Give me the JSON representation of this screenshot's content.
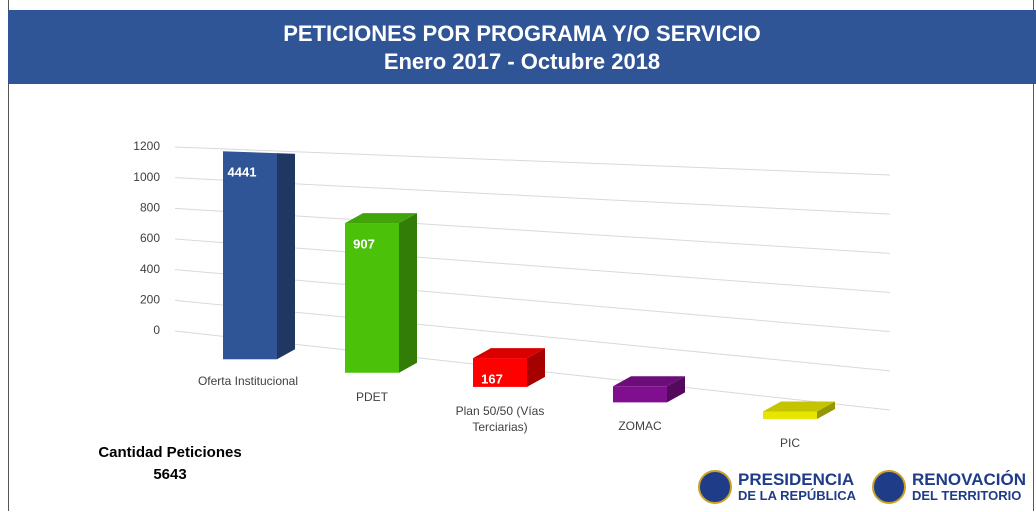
{
  "chart_data": {
    "type": "bar3d",
    "title": "PETICIONES POR PROGRAMA Y/O SERVICIO",
    "subtitle": "Enero 2017 - Octubre 2018",
    "categories": [
      "Oferta Institucional",
      "PDET",
      "Plan 50/50 (Vías Terciarias)",
      "ZOMAC",
      "PIC"
    ],
    "values": [
      4441,
      907,
      167,
      89,
      39
    ],
    "colors": [
      "#2f5597",
      "#4cc10a",
      "#ff0000",
      "#7f0f8f",
      "#e6e600"
    ],
    "ylim": [
      0,
      1200
    ],
    "yticks": [
      0,
      200,
      400,
      600,
      800,
      1000,
      1200
    ],
    "grid": true
  },
  "total": {
    "label": "Cantidad Peticiones",
    "value": 5643
  },
  "logos": [
    {
      "line1": "PRESIDENCIA",
      "line2": "DE LA REPÚBLICA"
    },
    {
      "line1": "RENOVACIÓN",
      "line2": "DEL TERRITORIO"
    }
  ]
}
